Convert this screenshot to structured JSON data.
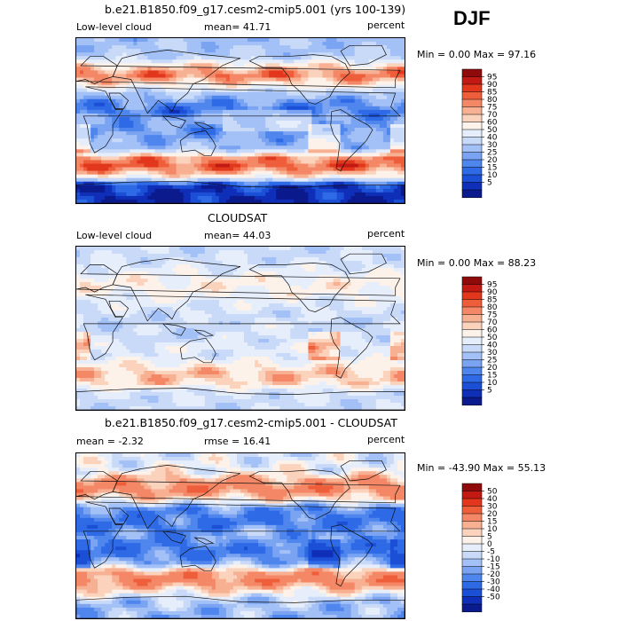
{
  "season": "DJF",
  "colors": {
    "abs": [
      "#0b1a8c",
      "#0f2fb8",
      "#1a4fd6",
      "#2f6ae6",
      "#4f86ee",
      "#7aa4f2",
      "#a3c1f6",
      "#c8daf8",
      "#e6eefb",
      "#fdf2ea",
      "#fbd3bd",
      "#f8b093",
      "#f48866",
      "#ef5e3b",
      "#e2371c",
      "#c21a12",
      "#8f0a0a"
    ],
    "diff": [
      "#0b1a8c",
      "#0f2fb8",
      "#1a4fd6",
      "#2f6ae6",
      "#4f86ee",
      "#7aa4f2",
      "#a3c1f6",
      "#c8daf8",
      "#e6eefb",
      "#fdf2ea",
      "#fbd3bd",
      "#f8b093",
      "#f48866",
      "#ef5e3b",
      "#e2371c",
      "#c21a12",
      "#8f0a0a"
    ]
  },
  "panels": [
    {
      "id": "model",
      "title": "b.e21.B1850.f09_g17.cesm2-cmip5.001 (yrs 100-139)",
      "left_label": "Low-level cloud",
      "mid_label": "mean=  41.71",
      "right_label": "percent",
      "minmax": "Min =   0.00 Max =  97.16",
      "colorbar_ticks": [
        "95",
        "90",
        "85",
        "80",
        "75",
        "70",
        "60",
        "50",
        "40",
        "30",
        "25",
        "20",
        "15",
        "10",
        "5"
      ]
    },
    {
      "id": "obs",
      "title": "CLOUDSAT",
      "left_label": "Low-level cloud",
      "mid_label": "mean=  44.03",
      "right_label": "percent",
      "minmax": "Min =   0.00 Max =  88.23",
      "colorbar_ticks": [
        "95",
        "90",
        "85",
        "80",
        "75",
        "70",
        "60",
        "50",
        "40",
        "30",
        "25",
        "20",
        "15",
        "10",
        "5"
      ]
    },
    {
      "id": "diff",
      "title": "b.e21.B1850.f09_g17.cesm2-cmip5.001 - CLOUDSAT",
      "left_label": "mean =   -2.32",
      "mid_label": "rmse =  16.41",
      "right_label": "percent",
      "minmax": "Min = -43.90 Max =  55.13",
      "colorbar_ticks": [
        "50",
        "40",
        "30",
        "20",
        "15",
        "10",
        "5",
        "0",
        "-5",
        "-10",
        "-15",
        "-20",
        "-30",
        "-40",
        "-50"
      ]
    }
  ],
  "chart_data": [
    {
      "type": "heatmap",
      "title": "b.e21.B1850.f09_g17.cesm2-cmip5.001 (yrs 100-139)",
      "variable": "Low-level cloud",
      "units": "percent",
      "season": "DJF",
      "mean": 41.71,
      "min": 0.0,
      "max": 97.16,
      "levels": [
        5,
        10,
        15,
        20,
        25,
        30,
        40,
        50,
        60,
        70,
        75,
        80,
        85,
        90,
        95
      ],
      "lat_range": [
        -90,
        90
      ],
      "lon_range": [
        0,
        360
      ],
      "zonal_profile": {
        "lat": [
          -90,
          -70,
          -60,
          -50,
          -40,
          -30,
          -20,
          -10,
          0,
          10,
          20,
          30,
          40,
          50,
          60,
          70,
          90
        ],
        "value": [
          5,
          10,
          70,
          88,
          80,
          35,
          30,
          25,
          30,
          20,
          25,
          40,
          70,
          85,
          70,
          40,
          35
        ]
      }
    },
    {
      "type": "heatmap",
      "title": "CLOUDSAT",
      "variable": "Low-level cloud",
      "units": "percent",
      "season": "DJF",
      "mean": 44.03,
      "min": 0.0,
      "max": 88.23,
      "levels": [
        5,
        10,
        15,
        20,
        25,
        30,
        40,
        50,
        60,
        70,
        75,
        80,
        85,
        90,
        95
      ],
      "lat_range": [
        -90,
        90
      ],
      "lon_range": [
        0,
        360
      ],
      "zonal_profile": {
        "lat": [
          -90,
          -70,
          -60,
          -50,
          -40,
          -30,
          -20,
          -10,
          0,
          10,
          20,
          30,
          40,
          50,
          60,
          70,
          90
        ],
        "value": [
          45,
          50,
          72,
          75,
          65,
          50,
          55,
          45,
          45,
          45,
          50,
          55,
          62,
          65,
          58,
          50,
          45
        ]
      }
    },
    {
      "type": "heatmap",
      "title": "b.e21.B1850.f09_g17.cesm2-cmip5.001 - CLOUDSAT",
      "variable": "Low-level cloud difference",
      "units": "percent",
      "season": "DJF",
      "mean": -2.32,
      "rmse": 16.41,
      "min": -43.9,
      "max": 55.13,
      "levels": [
        -50,
        -40,
        -30,
        -20,
        -15,
        -10,
        -5,
        0,
        5,
        10,
        15,
        20,
        30,
        40,
        50
      ],
      "lat_range": [
        -90,
        90
      ],
      "lon_range": [
        0,
        360
      ],
      "zonal_profile": {
        "lat": [
          -90,
          -70,
          -60,
          -50,
          -40,
          -30,
          -20,
          -10,
          0,
          10,
          20,
          30,
          40,
          50,
          60,
          70,
          90
        ],
        "value": [
          -10,
          -5,
          10,
          25,
          20,
          -10,
          -20,
          -20,
          -15,
          -20,
          -20,
          -15,
          10,
          25,
          20,
          5,
          0
        ]
      }
    }
  ]
}
